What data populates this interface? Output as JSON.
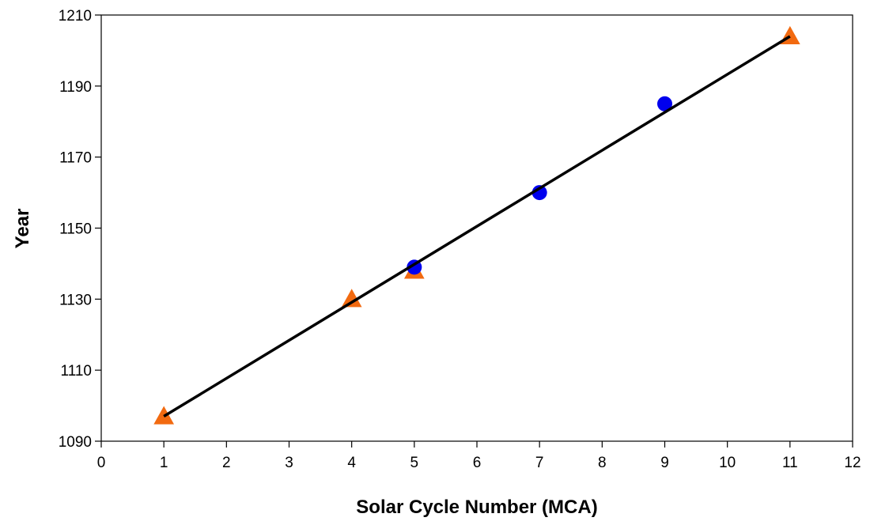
{
  "chart_data": {
    "type": "scatter",
    "title": "",
    "xlabel": "Solar Cycle Number (MCA)",
    "ylabel": "Year",
    "xlim": [
      0,
      12
    ],
    "ylim": [
      1090,
      1210
    ],
    "xticks": [
      0,
      1,
      2,
      3,
      4,
      5,
      6,
      7,
      8,
      9,
      10,
      11,
      12
    ],
    "yticks": [
      1090,
      1110,
      1130,
      1150,
      1170,
      1190,
      1210
    ],
    "grid": false,
    "legend": "none",
    "series": [
      {
        "marker": "triangle",
        "color": "#f26a10",
        "points": [
          {
            "x": 1,
            "y": 1097
          },
          {
            "x": 4,
            "y": 1130
          },
          {
            "x": 5,
            "y": 1138
          },
          {
            "x": 11,
            "y": 1204
          }
        ]
      },
      {
        "marker": "circle",
        "color": "#0000ee",
        "points": [
          {
            "x": 5,
            "y": 1139
          },
          {
            "x": 7,
            "y": 1160
          },
          {
            "x": 9,
            "y": 1185
          }
        ]
      },
      {
        "type": "line",
        "color": "#000000",
        "points": [
          {
            "x": 1,
            "y": 1097
          },
          {
            "x": 11,
            "y": 1204
          }
        ]
      }
    ]
  }
}
